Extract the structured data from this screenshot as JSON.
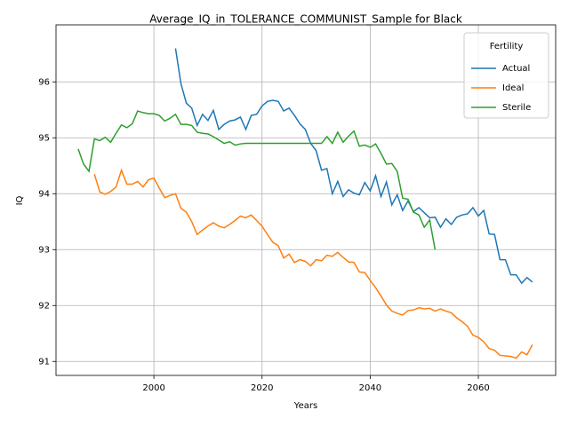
{
  "chart_data": {
    "type": "line",
    "title": "Average_IQ_in_TOLERANCE_COMMUNIST_Sample for Black",
    "xlabel": "Years",
    "ylabel": "IQ",
    "legend_title": "Fertility",
    "legend_loc": "upper right",
    "grid": true,
    "xlim": [
      1981.9,
      2074.3
    ],
    "ylim": [
      90.75,
      97.02
    ],
    "xticks": [
      2000,
      2020,
      2040,
      2060
    ],
    "yticks": [
      91,
      92,
      93,
      94,
      95,
      96
    ],
    "x": [
      1986,
      1987,
      1988,
      1989,
      1990,
      1991,
      1992,
      1993,
      1994,
      1995,
      1996,
      1997,
      1998,
      1999,
      2000,
      2001,
      2002,
      2003,
      2004,
      2005,
      2006,
      2007,
      2008,
      2009,
      2010,
      2011,
      2012,
      2013,
      2014,
      2015,
      2016,
      2017,
      2018,
      2019,
      2020,
      2021,
      2022,
      2023,
      2024,
      2025,
      2026,
      2027,
      2028,
      2029,
      2030,
      2031,
      2032,
      2033,
      2034,
      2035,
      2036,
      2037,
      2038,
      2039,
      2040,
      2041,
      2042,
      2043,
      2044,
      2045,
      2046,
      2047,
      2048,
      2049,
      2050,
      2051,
      2052,
      2053,
      2054,
      2055,
      2056,
      2057,
      2058,
      2059,
      2060,
      2061,
      2062,
      2063,
      2064,
      2065,
      2066,
      2067,
      2068,
      2069,
      2070
    ],
    "series": [
      {
        "name": "Actual",
        "color": "#1f77b4",
        "values": [
          null,
          null,
          null,
          null,
          null,
          null,
          null,
          null,
          null,
          null,
          null,
          null,
          null,
          null,
          null,
          null,
          null,
          null,
          96.6,
          95.97,
          95.62,
          95.53,
          95.22,
          95.42,
          95.31,
          95.49,
          95.15,
          95.24,
          95.3,
          95.32,
          95.37,
          95.15,
          95.4,
          95.42,
          95.57,
          95.65,
          95.67,
          95.65,
          95.48,
          95.53,
          95.4,
          95.25,
          95.15,
          94.9,
          94.77,
          94.42,
          94.45,
          94.0,
          94.22,
          93.95,
          94.07,
          94.01,
          93.98,
          94.2,
          94.05,
          94.32,
          93.95,
          94.21,
          93.8,
          93.98,
          93.7,
          93.87,
          93.68,
          93.75,
          93.66,
          93.57,
          93.58,
          93.4,
          93.55,
          93.45,
          93.58,
          93.62,
          93.64,
          93.75,
          93.6,
          93.7,
          93.28,
          93.27,
          92.82,
          92.82,
          92.55,
          92.55,
          92.4,
          92.5,
          92.42
        ]
      },
      {
        "name": "Ideal",
        "color": "#ff7f0e",
        "values": [
          null,
          null,
          null,
          94.35,
          94.03,
          93.99,
          94.04,
          94.12,
          94.42,
          94.17,
          94.17,
          94.22,
          94.12,
          94.25,
          94.28,
          94.1,
          93.93,
          93.97,
          94.0,
          93.74,
          93.67,
          93.5,
          93.27,
          93.35,
          93.42,
          93.48,
          93.42,
          93.39,
          93.45,
          93.52,
          93.6,
          93.57,
          93.62,
          93.52,
          93.42,
          93.27,
          93.13,
          93.07,
          92.85,
          92.92,
          92.77,
          92.82,
          92.79,
          92.71,
          92.82,
          92.8,
          92.9,
          92.88,
          92.95,
          92.86,
          92.78,
          92.77,
          92.6,
          92.59,
          92.45,
          92.32,
          92.17,
          92.01,
          91.9,
          91.86,
          91.83,
          91.91,
          91.92,
          91.96,
          91.94,
          91.95,
          91.9,
          91.94,
          91.9,
          91.87,
          91.78,
          91.71,
          91.63,
          91.47,
          91.43,
          91.35,
          91.23,
          91.2,
          91.11,
          91.1,
          91.09,
          91.06,
          91.17,
          91.12,
          91.3
        ]
      },
      {
        "name": "Sterile",
        "color": "#2ca02c",
        "values": [
          94.8,
          94.53,
          94.4,
          94.98,
          94.95,
          95.01,
          94.92,
          95.08,
          95.23,
          95.18,
          95.25,
          95.48,
          95.45,
          95.43,
          95.43,
          95.4,
          95.3,
          95.35,
          95.42,
          95.24,
          95.24,
          95.22,
          95.1,
          95.08,
          95.07,
          95.02,
          94.96,
          94.9,
          94.93,
          94.87,
          94.89,
          94.9,
          94.9,
          94.9,
          94.9,
          94.9,
          94.9,
          94.9,
          94.9,
          94.9,
          94.9,
          94.9,
          94.9,
          94.9,
          94.9,
          94.9,
          95.02,
          94.9,
          95.1,
          94.92,
          95.03,
          95.12,
          94.85,
          94.87,
          94.83,
          94.89,
          94.72,
          94.53,
          94.54,
          94.4,
          93.92,
          93.9,
          93.67,
          93.62,
          93.4,
          93.53,
          93.0,
          null,
          null,
          null,
          null,
          null,
          null,
          null,
          null,
          null,
          null,
          null,
          null,
          null,
          null,
          null,
          null,
          null,
          null
        ]
      }
    ]
  }
}
